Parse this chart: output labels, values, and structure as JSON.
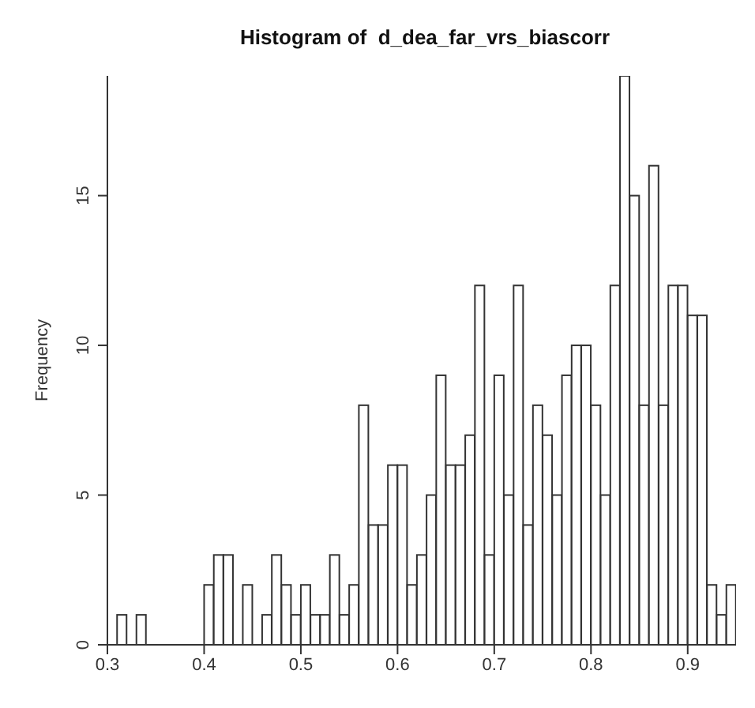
{
  "chart_data": {
    "type": "histogram",
    "title": "Histogram of  d_dea_far_vrs_biascorr",
    "ylabel": "Frequency",
    "bins": [
      0.31,
      0.32,
      0.33,
      0.34,
      0.35,
      0.36,
      0.37,
      0.38,
      0.39,
      0.4,
      0.41,
      0.42,
      0.43,
      0.44,
      0.45,
      0.46,
      0.47,
      0.48,
      0.49,
      0.5,
      0.51,
      0.52,
      0.53,
      0.54,
      0.55,
      0.56,
      0.57,
      0.58,
      0.59,
      0.6,
      0.61,
      0.62,
      0.63,
      0.64,
      0.65,
      0.66,
      0.67,
      0.68,
      0.69,
      0.7,
      0.71,
      0.72,
      0.73,
      0.74,
      0.75,
      0.76,
      0.77,
      0.78,
      0.79,
      0.8,
      0.81,
      0.82,
      0.83,
      0.84,
      0.85,
      0.86,
      0.87,
      0.88,
      0.89,
      0.9,
      0.91,
      0.92,
      0.93,
      0.94,
      0.95
    ],
    "values": [
      1,
      0,
      1,
      0,
      0,
      0,
      0,
      0,
      0,
      2,
      3,
      3,
      0,
      2,
      0,
      1,
      3,
      2,
      1,
      2,
      1,
      1,
      3,
      1,
      2,
      8,
      4,
      4,
      6,
      6,
      2,
      3,
      5,
      9,
      6,
      6,
      7,
      12,
      3,
      9,
      5,
      12,
      4,
      8,
      7,
      5,
      9,
      10,
      10,
      8,
      5,
      12,
      19,
      15,
      8,
      16,
      8,
      12,
      12,
      11,
      11,
      2,
      1,
      2
    ],
    "color": "#ffffff",
    "xlim": [
      0.3,
      0.95
    ],
    "xticks": [
      0.3,
      0.4,
      0.5,
      0.6,
      0.7,
      0.8,
      0.9
    ],
    "ylim": [
      0,
      19
    ],
    "yticks": [
      0,
      5,
      10,
      15
    ],
    "grid": false,
    "legend": false
  }
}
